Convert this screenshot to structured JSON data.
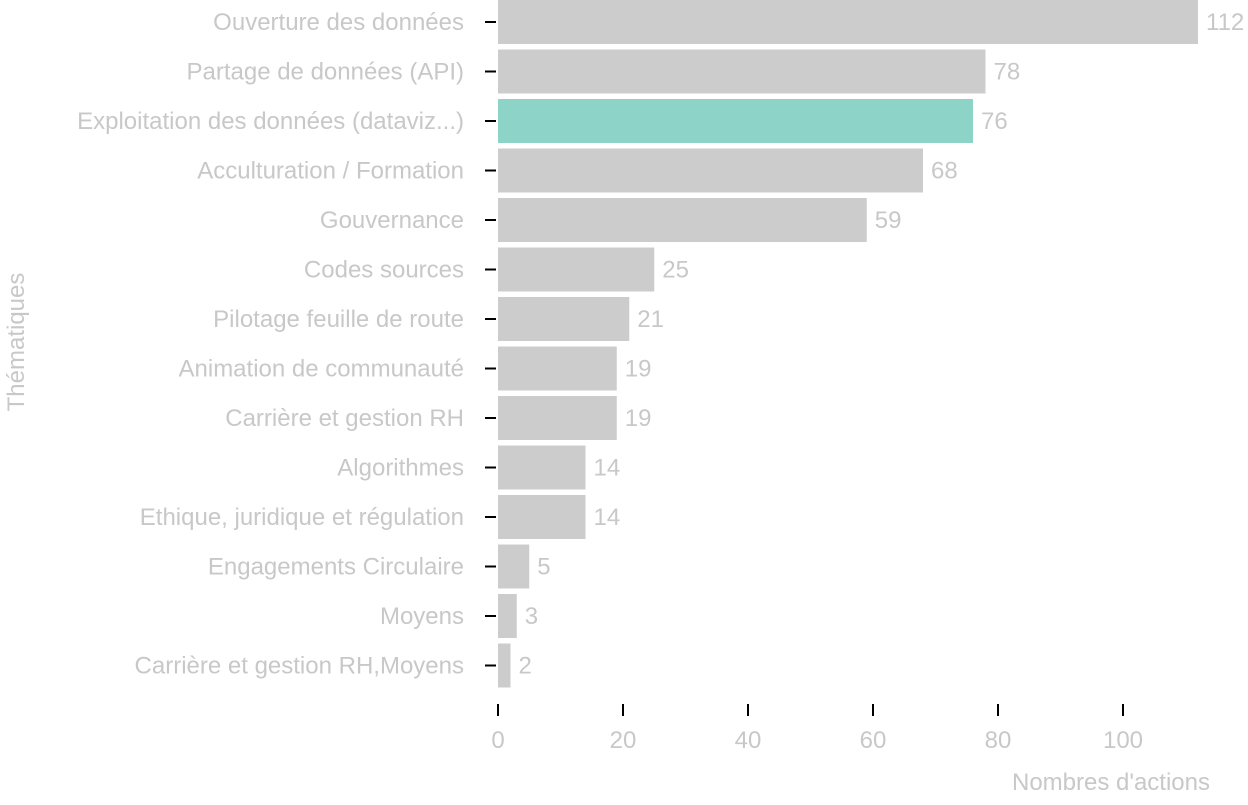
{
  "chart_data": {
    "type": "bar",
    "orientation": "horizontal",
    "categories": [
      "Ouverture des données",
      "Partage de données (API)",
      "Exploitation des données (dataviz...)",
      "Acculturation / Formation",
      "Gouvernance",
      "Codes sources",
      "Pilotage feuille de route",
      "Animation de communauté",
      "Carrière et gestion RH",
      "Algorithmes",
      "Ethique, juridique et régulation",
      "Engagements Circulaire",
      "Moyens",
      "Carrière et gestion RH,Moyens"
    ],
    "values": [
      112,
      78,
      76,
      68,
      59,
      25,
      21,
      19,
      19,
      14,
      14,
      5,
      3,
      2
    ],
    "highlight_index": 2,
    "colors": {
      "bar": "#cccccc",
      "highlight": "#8dd3c7",
      "text": "#c8c8c8",
      "tick": "#000000"
    },
    "xlabel": "Nombres d'actions",
    "ylabel": "Thématiques",
    "xlim": [
      0,
      112
    ],
    "xticks": [
      0,
      20,
      40,
      60,
      80,
      100
    ],
    "grid": false,
    "legend": "none"
  }
}
